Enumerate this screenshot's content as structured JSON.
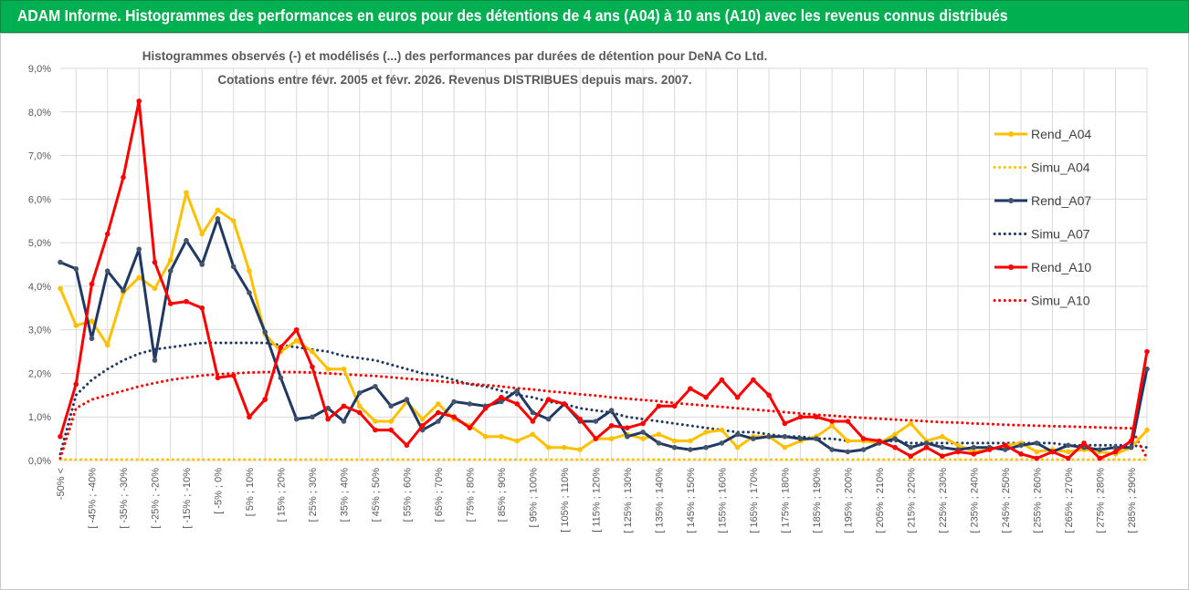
{
  "header": {
    "title": "ADAM Informe. Histogrammes des performances en euros pour des détentions de 4 ans (A04) à 10 ans (A10) avec les revenus connus distribués"
  },
  "chart_data": {
    "type": "line",
    "title_line1": "Histogrammes observés (-) et modélisés (...) des performances par durées de détention pour DeNA Co Ltd.",
    "title_line2": "Cotations entre févr. 2005 et févr. 2026. Revenus DISTRIBUES depuis mars. 2007.",
    "ylim": [
      0,
      9
    ],
    "y_ticks": [
      "0,0%",
      "1,0%",
      "2,0%",
      "3,0%",
      "4,0%",
      "5,0%",
      "6,0%",
      "7,0%",
      "8,0%",
      "9,0%"
    ],
    "x_labels": [
      "-50% <",
      "[ -45% ; -40%",
      "[ -35% ; -30%",
      "[ -25% ; -20%",
      "[ -15% ; -10%",
      "[ -5% ; 0%",
      "[ 5% ; 10%",
      "[ 15% ; 20%",
      "[ 25% ; 30%",
      "[ 35% ; 40%",
      "[ 45% ; 50%",
      "[ 55% ; 60%",
      "[ 65% ; 70%",
      "[ 75% ; 80%",
      "[ 85% ; 90%",
      "[ 95% ; 100%",
      "[ 105% ; 110%",
      "[ 115% ; 120%",
      "[ 125% ; 130%",
      "[ 135% ; 140%",
      "[ 145% ; 150%",
      "[ 155% ; 160%",
      "[ 165% ; 170%",
      "[ 175% ; 180%",
      "[ 185% ; 190%",
      "[ 195% ; 200%",
      "[ 205% ; 210%",
      "[ 215% ; 220%",
      "[ 225% ; 230%",
      "[ 235% ; 240%",
      "[ 245% ; 250%",
      "[ 255% ; 260%",
      "[ 265% ; 270%",
      "[ 275% ; 280%",
      "[ 285% ; 290%"
    ],
    "n_points": 70,
    "legend": [
      "Rend_A04",
      "Simu_A04",
      "Rend_A07",
      "Simu_A07",
      "Rend_A10",
      "Simu_A10"
    ],
    "colors": {
      "a04": "#ffc000",
      "a07": "#1f3864",
      "a10": "#ff0000",
      "grid": "#d9d9d9",
      "axis_text": "#595959",
      "title_text": "#595959"
    },
    "series": [
      {
        "name": "Rend_A04",
        "style": "solid",
        "color_key": "a04",
        "values": [
          3.95,
          3.1,
          3.2,
          2.65,
          3.85,
          4.2,
          3.95,
          4.6,
          6.15,
          5.2,
          5.75,
          5.5,
          4.35,
          2.9,
          2.5,
          2.75,
          2.5,
          2.1,
          2.1,
          1.25,
          0.9,
          0.9,
          1.35,
          0.95,
          1.3,
          0.95,
          0.8,
          0.55,
          0.55,
          0.45,
          0.6,
          0.3,
          0.3,
          0.25,
          0.5,
          0.5,
          0.6,
          0.5,
          0.6,
          0.45,
          0.45,
          0.65,
          0.7,
          0.3,
          0.55,
          0.55,
          0.3,
          0.45,
          0.55,
          0.8,
          0.45,
          0.45,
          0.4,
          0.6,
          0.85,
          0.45,
          0.55,
          0.35,
          0.2,
          0.25,
          0.35,
          0.4,
          0.2,
          0.25,
          0.2,
          0.25,
          0.2,
          0.15,
          0.3,
          0.7
        ]
      },
      {
        "name": "Simu_A04",
        "style": "dotted",
        "color_key": "a04",
        "values": [
          0.02,
          0.02,
          0.02,
          0.02,
          0.02,
          0.02,
          0.02,
          0.02,
          0.02,
          0.02,
          0.02,
          0.02,
          0.02,
          0.02,
          0.02,
          0.02,
          0.02,
          0.02,
          0.02,
          0.02,
          0.02,
          0.02,
          0.02,
          0.02,
          0.02,
          0.02,
          0.02,
          0.02,
          0.02,
          0.02,
          0.02,
          0.02,
          0.02,
          0.02,
          0.02,
          0.02,
          0.02,
          0.02,
          0.02,
          0.02,
          0.02,
          0.02,
          0.02,
          0.02,
          0.02,
          0.02,
          0.02,
          0.02,
          0.02,
          0.02,
          0.02,
          0.02,
          0.02,
          0.02,
          0.02,
          0.02,
          0.02,
          0.02,
          0.02,
          0.02,
          0.02,
          0.02,
          0.02,
          0.02,
          0.02,
          0.02,
          0.02,
          0.02,
          0.02,
          0.02
        ]
      },
      {
        "name": "Rend_A07",
        "style": "solid",
        "color_key": "a07",
        "values": [
          4.55,
          4.4,
          2.8,
          4.35,
          3.9,
          4.85,
          2.3,
          4.35,
          5.05,
          4.5,
          5.55,
          4.45,
          3.85,
          2.95,
          1.9,
          0.95,
          1.0,
          1.2,
          0.9,
          1.55,
          1.7,
          1.25,
          1.4,
          0.7,
          0.9,
          1.35,
          1.3,
          1.25,
          1.35,
          1.6,
          1.1,
          0.95,
          1.3,
          0.9,
          0.9,
          1.15,
          0.55,
          0.65,
          0.4,
          0.3,
          0.25,
          0.3,
          0.4,
          0.6,
          0.5,
          0.55,
          0.55,
          0.5,
          0.5,
          0.25,
          0.2,
          0.25,
          0.4,
          0.5,
          0.3,
          0.4,
          0.3,
          0.25,
          0.3,
          0.3,
          0.25,
          0.35,
          0.4,
          0.2,
          0.35,
          0.3,
          0.25,
          0.3,
          0.3,
          2.1
        ]
      },
      {
        "name": "Simu_A07",
        "style": "dotted",
        "color_key": "a07",
        "values": [
          0.15,
          1.5,
          1.85,
          2.1,
          2.3,
          2.45,
          2.55,
          2.6,
          2.65,
          2.7,
          2.7,
          2.7,
          2.7,
          2.7,
          2.65,
          2.6,
          2.55,
          2.5,
          2.4,
          2.35,
          2.3,
          2.2,
          2.1,
          2.0,
          1.95,
          1.85,
          1.75,
          1.7,
          1.6,
          1.5,
          1.45,
          1.35,
          1.3,
          1.2,
          1.15,
          1.1,
          1.0,
          0.95,
          0.9,
          0.85,
          0.8,
          0.75,
          0.7,
          0.65,
          0.65,
          0.6,
          0.55,
          0.55,
          0.5,
          0.5,
          0.45,
          0.45,
          0.45,
          0.45,
          0.4,
          0.4,
          0.4,
          0.4,
          0.4,
          0.4,
          0.4,
          0.4,
          0.4,
          0.4,
          0.35,
          0.35,
          0.35,
          0.35,
          0.35,
          0.3
        ]
      },
      {
        "name": "Rend_A10",
        "style": "solid",
        "color_key": "a10",
        "values": [
          0.55,
          1.75,
          4.05,
          5.2,
          6.5,
          8.25,
          4.55,
          3.6,
          3.65,
          3.5,
          1.9,
          1.95,
          1.0,
          1.4,
          2.6,
          3.0,
          2.15,
          0.95,
          1.25,
          1.1,
          0.7,
          0.7,
          0.35,
          0.8,
          1.1,
          1.0,
          0.75,
          1.2,
          1.45,
          1.3,
          0.9,
          1.4,
          1.3,
          0.95,
          0.5,
          0.8,
          0.75,
          0.85,
          1.25,
          1.25,
          1.65,
          1.45,
          1.85,
          1.45,
          1.85,
          1.5,
          0.85,
          1.0,
          1.0,
          0.9,
          0.9,
          0.5,
          0.45,
          0.3,
          0.1,
          0.3,
          0.1,
          0.2,
          0.15,
          0.25,
          0.35,
          0.15,
          0.05,
          0.2,
          0.05,
          0.4,
          0.05,
          0.2,
          0.45,
          2.5
        ]
      },
      {
        "name": "Simu_A10",
        "style": "dotted",
        "color_key": "a10",
        "values": [
          0.05,
          1.2,
          1.4,
          1.5,
          1.6,
          1.7,
          1.78,
          1.85,
          1.9,
          1.95,
          1.98,
          2.0,
          2.02,
          2.03,
          2.03,
          2.03,
          2.02,
          2.0,
          1.98,
          1.96,
          1.94,
          1.91,
          1.88,
          1.85,
          1.82,
          1.79,
          1.76,
          1.73,
          1.7,
          1.66,
          1.63,
          1.59,
          1.56,
          1.52,
          1.49,
          1.45,
          1.42,
          1.39,
          1.36,
          1.32,
          1.29,
          1.26,
          1.23,
          1.2,
          1.17,
          1.14,
          1.11,
          1.08,
          1.05,
          1.03,
          1.0,
          0.98,
          0.96,
          0.94,
          0.92,
          0.9,
          0.88,
          0.87,
          0.85,
          0.84,
          0.82,
          0.81,
          0.8,
          0.79,
          0.78,
          0.77,
          0.76,
          0.75,
          0.74,
          0.05
        ]
      }
    ]
  }
}
